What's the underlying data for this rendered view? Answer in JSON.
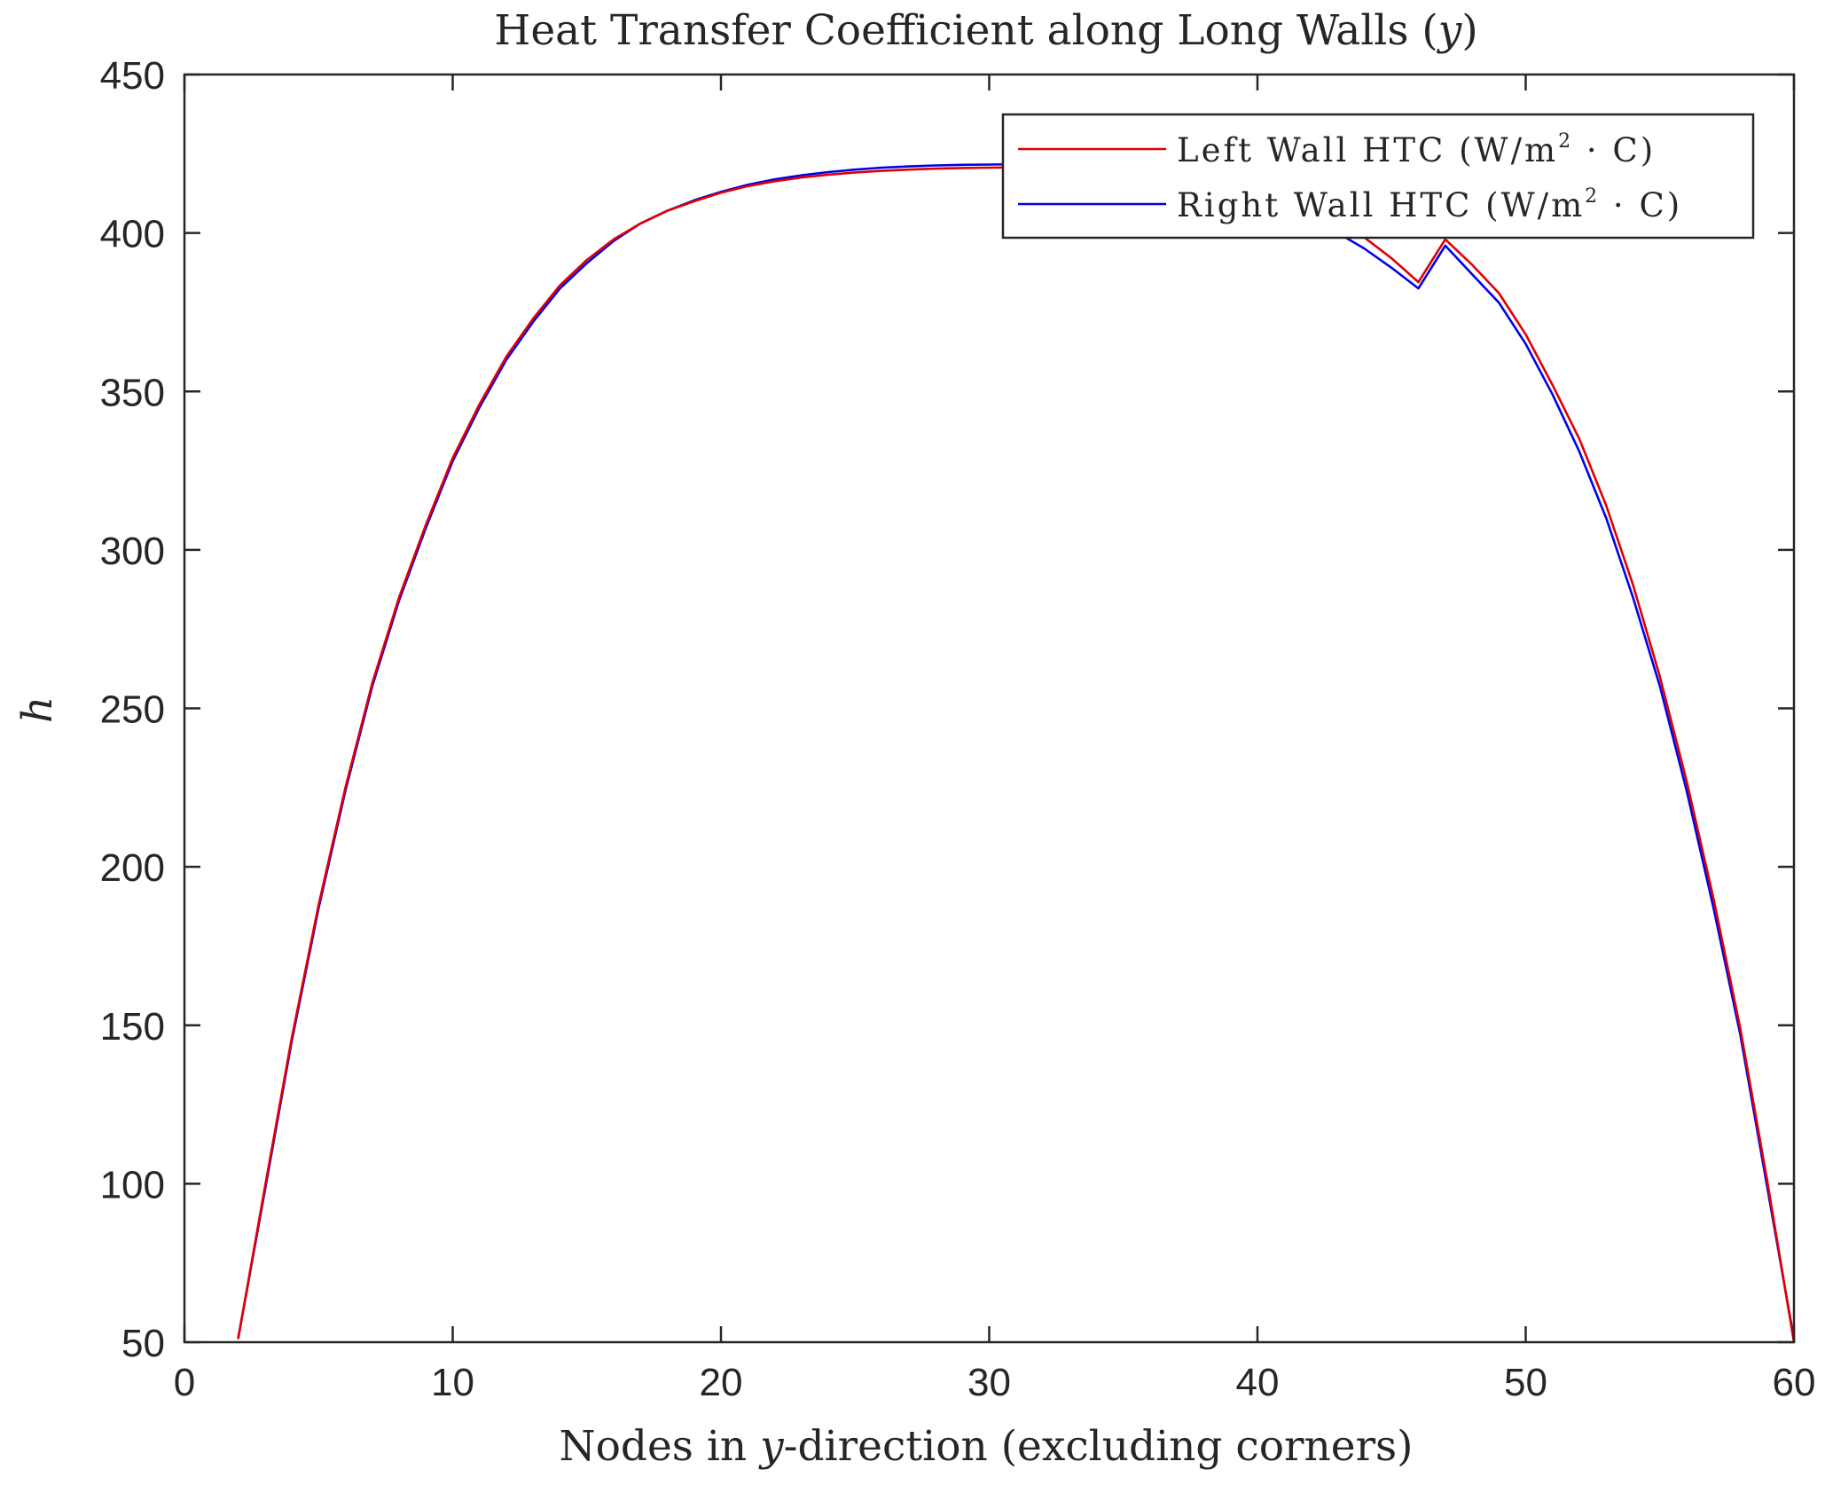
{
  "chart_data": {
    "type": "line",
    "title": "Heat Transfer Coefficient along Long Walls (y)",
    "xlabel": "Nodes in y-direction (excluding corners)",
    "ylabel": "h",
    "xlim": [
      0,
      60
    ],
    "ylim": [
      50,
      450
    ],
    "xticks": [
      0,
      10,
      20,
      30,
      40,
      50,
      60
    ],
    "yticks": [
      50,
      100,
      150,
      200,
      250,
      300,
      350,
      400,
      450
    ],
    "grid": false,
    "legend_position": "upper right",
    "x": [
      2,
      3,
      4,
      5,
      6,
      7,
      8,
      9,
      10,
      11,
      12,
      13,
      14,
      15,
      16,
      17,
      18,
      19,
      20,
      21,
      22,
      23,
      24,
      25,
      26,
      27,
      28,
      29,
      30,
      31,
      32,
      33,
      34,
      35,
      36,
      37,
      38,
      39,
      40,
      41,
      42,
      43,
      44,
      45,
      46,
      47,
      48,
      49,
      50,
      51,
      52,
      53,
      54,
      55,
      56,
      57,
      58,
      59,
      60
    ],
    "series": [
      {
        "name": "Left Wall HTC (W/m^2 · C)",
        "color": "#e00000",
        "values": [
          51,
          99,
          146,
          188,
          225,
          258,
          285,
          308,
          329,
          346,
          361,
          373,
          383.5,
          391.5,
          398,
          403,
          407,
          410,
          412.7,
          414.8,
          416.3,
          417.5,
          418.4,
          419.1,
          419.6,
          420,
          420.3,
          420.5,
          420.6,
          420.7,
          420.7,
          420.6,
          420.4,
          420.1,
          419.6,
          418.9,
          417.9,
          416.5,
          414.6,
          412,
          408.5,
          404,
          398.5,
          392,
          384.5,
          398,
          390,
          381,
          368,
          352,
          335,
          314,
          289,
          260,
          227,
          190,
          149,
          101,
          50
        ]
      },
      {
        "name": "Right Wall HTC (W/m^2 · C)",
        "color": "#0000ee",
        "values": [
          51,
          98,
          145,
          187,
          224,
          257,
          284,
          307,
          328,
          345,
          360,
          372,
          382.5,
          390.5,
          397.5,
          403,
          407,
          410.3,
          413,
          415.2,
          416.9,
          418.2,
          419.2,
          420,
          420.6,
          421,
          421.3,
          421.5,
          421.6,
          421.7,
          421.6,
          421.4,
          421,
          420.4,
          419.5,
          418.3,
          416.7,
          414.6,
          411.9,
          408.6,
          404.6,
          400,
          395,
          389,
          382.5,
          396,
          387,
          378,
          365,
          349,
          331,
          310,
          285,
          257,
          224,
          187,
          147,
          99,
          51
        ]
      }
    ]
  },
  "title": "Heat Transfer Coefficient along Long Walls (",
  "title_var": "y",
  "title_end": ")",
  "xlabel_pre": "Nodes in ",
  "xlabel_var": "y",
  "xlabel_post": "-direction (excluding corners)",
  "ylabel": "h",
  "legend": {
    "items": [
      {
        "label": "Left Wall HTC (W/m",
        "sup": "2",
        "tail": " · C)",
        "color": "#e00000"
      },
      {
        "label": "Right Wall HTC (W/m",
        "sup": "2",
        "tail": " · C)",
        "color": "#0000ee"
      }
    ]
  }
}
